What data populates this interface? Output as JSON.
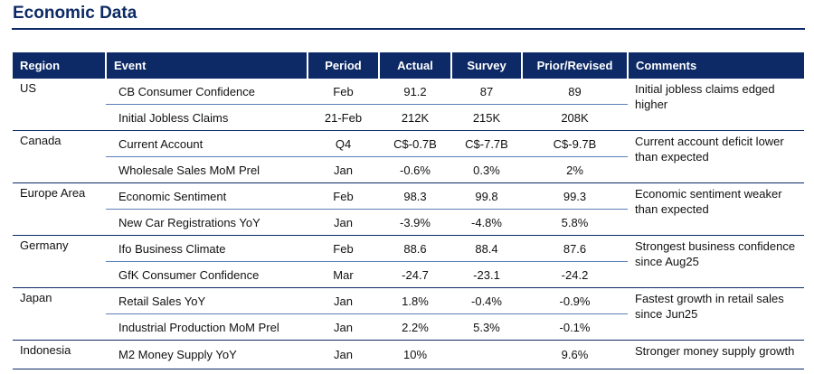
{
  "page": {
    "title": "Economic Data"
  },
  "columns": [
    "Region",
    "Event",
    "Period",
    "Actual",
    "Survey",
    "Prior/Revised",
    "Comments"
  ],
  "groups": [
    {
      "region": "US",
      "comment": "Initial jobless claims edged higher",
      "rows": [
        {
          "event": "CB Consumer Confidence",
          "period": "Feb",
          "actual": "91.2",
          "survey": "87",
          "prior": "89"
        },
        {
          "event": "Initial Jobless Claims",
          "period": "21-Feb",
          "actual": "212K",
          "survey": "215K",
          "prior": "208K"
        }
      ]
    },
    {
      "region": "Canada",
      "comment": "Current account deficit lower than expected",
      "rows": [
        {
          "event": "Current Account",
          "period": "Q4",
          "actual": "C$-0.7B",
          "survey": "C$-7.7B",
          "prior": "C$-9.7B"
        },
        {
          "event": "Wholesale Sales MoM Prel",
          "period": "Jan",
          "actual": "-0.6%",
          "survey": "0.3%",
          "prior": "2%"
        }
      ]
    },
    {
      "region": "Europe Area",
      "comment": "Economic sentiment weaker than expected",
      "rows": [
        {
          "event": "Economic Sentiment",
          "period": "Feb",
          "actual": "98.3",
          "survey": "99.8",
          "prior": "99.3"
        },
        {
          "event": "New Car Registrations YoY",
          "period": "Jan",
          "actual": "-3.9%",
          "survey": "-4.8%",
          "prior": "5.8%"
        }
      ]
    },
    {
      "region": "Germany",
      "comment": "Strongest business confidence since Aug25",
      "rows": [
        {
          "event": "Ifo Business Climate",
          "period": "Feb",
          "actual": "88.6",
          "survey": "88.4",
          "prior": "87.6"
        },
        {
          "event": "GfK Consumer Confidence",
          "period": "Mar",
          "actual": "-24.7",
          "survey": "-23.1",
          "prior": "-24.2"
        }
      ]
    },
    {
      "region": "Japan",
      "comment": "Fastest growth in retail sales since Jun25",
      "rows": [
        {
          "event": "Retail Sales YoY",
          "period": "Jan",
          "actual": "1.8%",
          "survey": "-0.4%",
          "prior": "-0.9%"
        },
        {
          "event": "Industrial Production MoM Prel",
          "period": "Jan",
          "actual": "2.2%",
          "survey": "5.3%",
          "prior": "-0.1%"
        }
      ]
    },
    {
      "region": "Indonesia",
      "comment": "Stronger money supply growth",
      "rows": [
        {
          "event": "M2 Money Supply YoY",
          "period": "Jan",
          "actual": "10%",
          "survey": "",
          "prior": "9.6%"
        }
      ]
    }
  ],
  "colors": {
    "header_bg": "#0d2a66",
    "header_text": "#ffffff",
    "rule": "#0d2a66",
    "subrule": "#5b7fb8"
  }
}
